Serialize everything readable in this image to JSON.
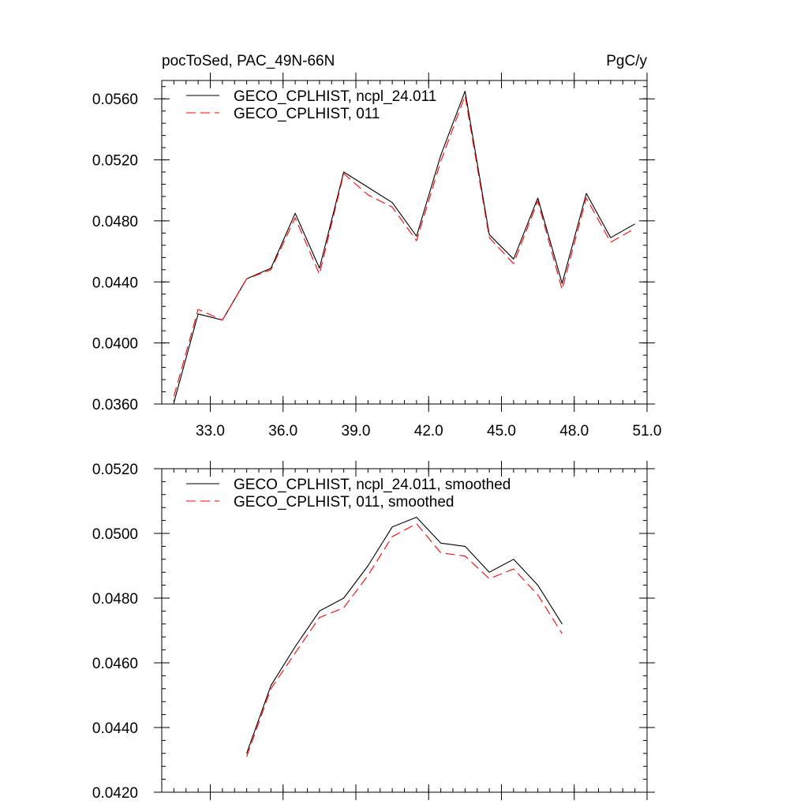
{
  "chart_data": [
    {
      "type": "line",
      "title_left": "pocToSed, PAC_49N-66N",
      "title_right": "PgC/y",
      "xlabel": "",
      "ylabel": "",
      "xlim": [
        31.0,
        51.0
      ],
      "ylim": [
        0.036,
        0.0572
      ],
      "xticks": [
        33.0,
        36.0,
        39.0,
        42.0,
        45.0,
        48.0,
        51.0
      ],
      "xtick_labels": [
        "33.0",
        "36.0",
        "39.0",
        "42.0",
        "45.0",
        "48.0",
        "51.0"
      ],
      "yticks": [
        0.036,
        0.04,
        0.044,
        0.048,
        0.052,
        0.056
      ],
      "ytick_labels": [
        "0.0360",
        "0.0400",
        "0.0440",
        "0.0480",
        "0.0520",
        "0.0560"
      ],
      "legend_position": "top-left",
      "grid": false,
      "x": [
        31.5,
        32.5,
        33.5,
        34.5,
        35.5,
        36.5,
        37.5,
        38.5,
        39.5,
        40.5,
        41.5,
        42.5,
        43.5,
        44.5,
        45.5,
        46.5,
        47.5,
        48.5,
        49.5,
        50.5
      ],
      "series": [
        {
          "name": "GECO_CPLHIST, ncpl_24.011",
          "color": "#000000",
          "dash": "solid",
          "values": [
            0.0361,
            0.0419,
            0.0415,
            0.0442,
            0.0449,
            0.0485,
            0.0449,
            0.0512,
            0.0502,
            0.0492,
            0.047,
            0.0523,
            0.0565,
            0.0471,
            0.0455,
            0.0495,
            0.0439,
            0.0498,
            0.0469,
            0.0478
          ]
        },
        {
          "name": "GECO_CPLHIST, 011",
          "color": "#ff0000",
          "dash": "dashed",
          "values": [
            0.0365,
            0.0422,
            0.0415,
            0.0442,
            0.0448,
            0.0482,
            0.0445,
            0.0511,
            0.0497,
            0.0489,
            0.0467,
            0.0519,
            0.0562,
            0.0469,
            0.0452,
            0.0493,
            0.0435,
            0.0495,
            0.0466,
            0.0475
          ]
        }
      ]
    },
    {
      "type": "line",
      "xlabel": "",
      "ylabel": "",
      "xlim": [
        31.0,
        51.0
      ],
      "ylim": [
        0.042,
        0.052
      ],
      "xticks": [
        33.0,
        36.0,
        39.0,
        42.0,
        45.0,
        48.0,
        51.0
      ],
      "yticks": [
        0.042,
        0.044,
        0.046,
        0.048,
        0.05,
        0.052
      ],
      "ytick_labels": [
        "0.0420",
        "0.0440",
        "0.0460",
        "0.0480",
        "0.0500",
        "0.0520"
      ],
      "legend_position": "top-left",
      "grid": false,
      "x": [
        34.5,
        35.5,
        36.5,
        37.5,
        38.5,
        39.5,
        40.5,
        41.5,
        42.5,
        43.5,
        44.5,
        45.5,
        46.5,
        47.5
      ],
      "series": [
        {
          "name": "GECO_CPLHIST, ncpl_24.011, smoothed",
          "color": "#000000",
          "dash": "solid",
          "values": [
            0.0432,
            0.0453,
            0.0465,
            0.0476,
            0.048,
            0.049,
            0.0502,
            0.0505,
            0.0497,
            0.0496,
            0.0488,
            0.0492,
            0.0484,
            0.0472
          ]
        },
        {
          "name": "GECO_CPLHIST, 011, smoothed",
          "color": "#ff0000",
          "dash": "dashed",
          "values": [
            0.0431,
            0.0452,
            0.0463,
            0.0474,
            0.0477,
            0.0487,
            0.0499,
            0.0503,
            0.0494,
            0.0493,
            0.0486,
            0.0489,
            0.0481,
            0.0469
          ]
        }
      ]
    }
  ]
}
